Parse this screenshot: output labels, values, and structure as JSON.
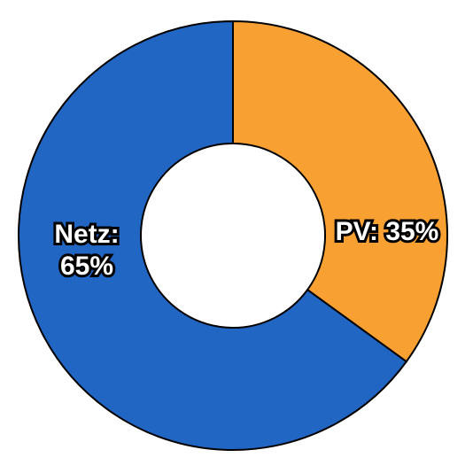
{
  "chart_data": {
    "type": "donut",
    "values": [
      35,
      65
    ],
    "value_labels": [
      "PV: 35%",
      "Netz: 65%"
    ],
    "colors": [
      "#f9a033",
      "#2166c2"
    ]
  }
}
